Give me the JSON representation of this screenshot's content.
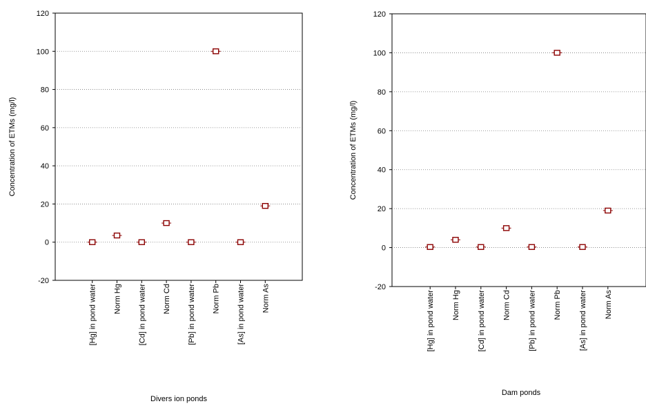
{
  "chart_data": [
    {
      "type": "scatter",
      "xlabel": "Divers ion ponds",
      "ylabel": "Concentration of ETMs (mg/l)",
      "ylim": [
        -20,
        120
      ],
      "yticks": [
        -20,
        0,
        20,
        40,
        60,
        80,
        100,
        120
      ],
      "grid": true,
      "categories": [
        "[Hg]  in pond water",
        "Norm Hg",
        "[Cd] in pond water",
        "Norm Cd",
        "[Pb] in pond water",
        "Norm Pb",
        "[As] in pond water",
        "Norm As"
      ],
      "values": [
        0,
        3.5,
        0,
        10,
        0,
        100,
        0,
        19
      ],
      "marker_color": "#8b0000"
    },
    {
      "type": "scatter",
      "xlabel": "Dam ponds",
      "ylabel": "Concentration of ETMs (mg/l)",
      "ylim": [
        -20,
        120
      ],
      "yticks": [
        -20,
        0,
        20,
        40,
        60,
        80,
        100,
        120
      ],
      "grid": true,
      "categories": [
        "[Hg] in pond water",
        "Norm Hg",
        "[Cd] in pond water",
        "Norm Cd",
        "[Pb] in pond water",
        "Norm Pb",
        "[As] in pond water",
        "Norm As"
      ],
      "values": [
        0.3,
        4,
        0.3,
        10,
        0.3,
        100,
        0.3,
        19
      ],
      "marker_color": "#8b0000"
    }
  ]
}
